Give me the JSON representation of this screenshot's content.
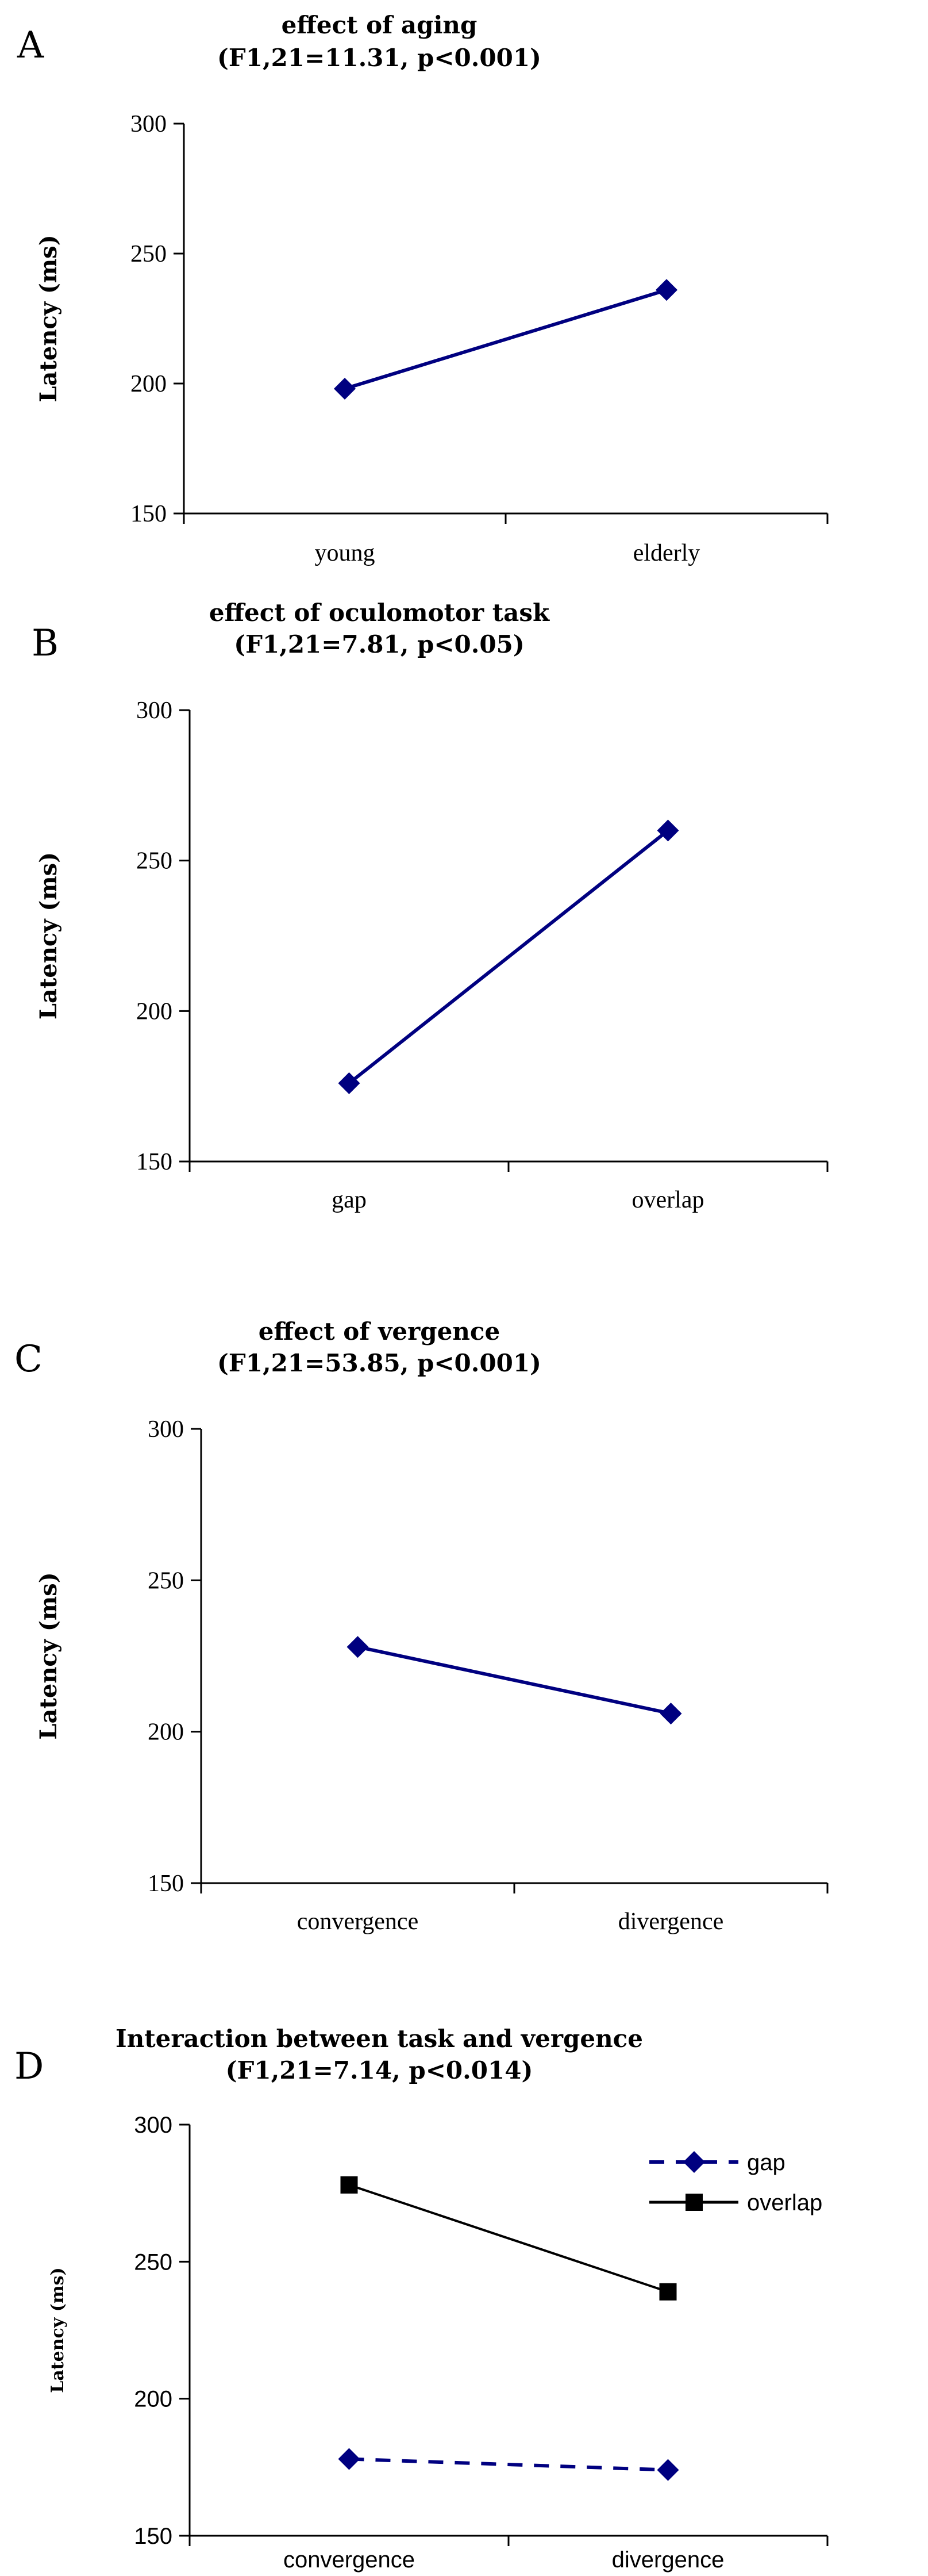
{
  "chart_data": [
    {
      "panel": "A",
      "type": "line",
      "title": "effect of aging",
      "subtitle": "(F1,21=11.31, p<0.001)",
      "xlabel": "",
      "ylabel": "Latency (ms)",
      "ylim": [
        150,
        300
      ],
      "yticks": [
        150,
        200,
        250,
        300
      ],
      "categories": [
        "young",
        "elderly"
      ],
      "series": [
        {
          "name": "",
          "values": [
            198,
            236
          ],
          "color": "#000080",
          "marker": "diamond",
          "dashed": false
        }
      ],
      "legend": null
    },
    {
      "panel": "B",
      "type": "line",
      "title": "effect of oculomotor task",
      "subtitle": "(F1,21=7.81, p<0.05)",
      "xlabel": "",
      "ylabel": "Latency (ms)",
      "ylim": [
        150,
        300
      ],
      "yticks": [
        150,
        200,
        250,
        300
      ],
      "categories": [
        "gap",
        "overlap"
      ],
      "series": [
        {
          "name": "",
          "values": [
            176,
            260
          ],
          "color": "#000080",
          "marker": "diamond",
          "dashed": false
        }
      ],
      "legend": null
    },
    {
      "panel": "C",
      "type": "line",
      "title": "effect of vergence",
      "subtitle": "(F1,21=53.85, p<0.001)",
      "xlabel": "",
      "ylabel": "Latency (ms)",
      "ylim": [
        150,
        300
      ],
      "yticks": [
        150,
        200,
        250,
        300
      ],
      "categories": [
        "convergence",
        "divergence"
      ],
      "series": [
        {
          "name": "",
          "values": [
            228,
            206
          ],
          "color": "#000080",
          "marker": "diamond",
          "dashed": false
        }
      ],
      "legend": null
    },
    {
      "panel": "D",
      "type": "line",
      "title": "Interaction between task and vergence",
      "subtitle": "(F1,21=7.14, p<0.014)",
      "xlabel": "",
      "ylabel": "Latency (ms)",
      "ylim": [
        150,
        300
      ],
      "yticks": [
        150,
        200,
        250,
        300
      ],
      "categories": [
        "convergence",
        "divergence"
      ],
      "series": [
        {
          "name": "gap",
          "values": [
            178,
            174
          ],
          "color": "#000080",
          "marker": "diamond",
          "dashed": true
        },
        {
          "name": "overlap",
          "values": [
            278,
            239
          ],
          "color": "#000000",
          "marker": "square",
          "dashed": false
        }
      ],
      "legend": "top-right"
    }
  ]
}
